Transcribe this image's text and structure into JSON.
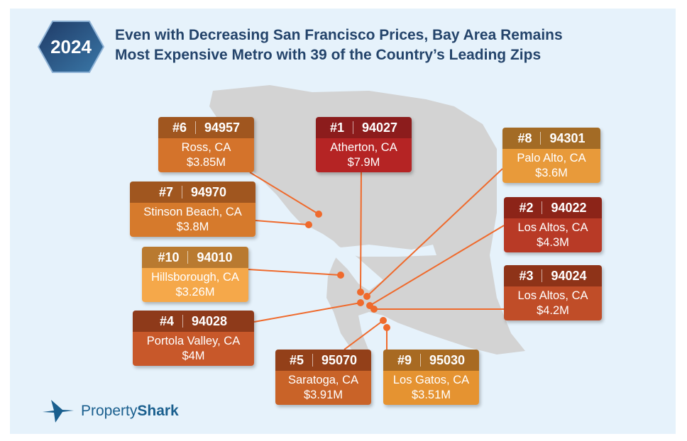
{
  "header": {
    "year": "2024",
    "title_line1": "Even with Decreasing San Francisco Prices, Bay Area Remains",
    "title_line2": "Most Expensive Metro with 39 of the Country’s Leading Zips"
  },
  "colors": {
    "background": "#e6f2fb",
    "land": "#d3d3d3",
    "line": "#ef6a2c",
    "title": "#24446b",
    "logo": "#1a5f8e"
  },
  "cards": [
    {
      "rank": "#1",
      "zip": "94027",
      "city": "Atherton, CA",
      "price": "$7.9M",
      "header": "#8c1c1c",
      "body": "#b52424"
    },
    {
      "rank": "#2",
      "zip": "94022",
      "city": "Los Altos, CA",
      "price": "$4.3M",
      "header": "#8c2418",
      "body": "#b83a26"
    },
    {
      "rank": "#3",
      "zip": "94024",
      "city": "Los Altos, CA",
      "price": "$4.2M",
      "header": "#8e3318",
      "body": "#c04d28"
    },
    {
      "rank": "#4",
      "zip": "94028",
      "city": "Portola Valley, CA",
      "price": "$4M",
      "header": "#8e3a1a",
      "body": "#c8582a"
    },
    {
      "rank": "#5",
      "zip": "95070",
      "city": "Saratoga, CA",
      "price": "$3.91M",
      "header": "#934019",
      "body": "#c96328"
    },
    {
      "rank": "#6",
      "zip": "94957",
      "city": "Ross, CA",
      "price": "$3.85M",
      "header": "#a0561f",
      "body": "#d4732b"
    },
    {
      "rank": "#7",
      "zip": "94970",
      "city": "Stinson Beach, CA",
      "price": "$3.8M",
      "header": "#a0561f",
      "body": "#d67a2c"
    },
    {
      "rank": "#8",
      "zip": "94301",
      "city": "Palo Alto, CA",
      "price": "$3.6M",
      "header": "#a36b25",
      "body": "#e89a3a"
    },
    {
      "rank": "#9",
      "zip": "95030",
      "city": "Los Gatos, CA",
      "price": "$3.51M",
      "header": "#a86a22",
      "body": "#e59331"
    },
    {
      "rank": "#10",
      "zip": "94010",
      "city": "Hillsborough, CA",
      "price": "$3.26M",
      "header": "#b97a30",
      "body": "#f5a84a"
    }
  ],
  "logo": {
    "part1": "Property",
    "part2": "Shark"
  }
}
